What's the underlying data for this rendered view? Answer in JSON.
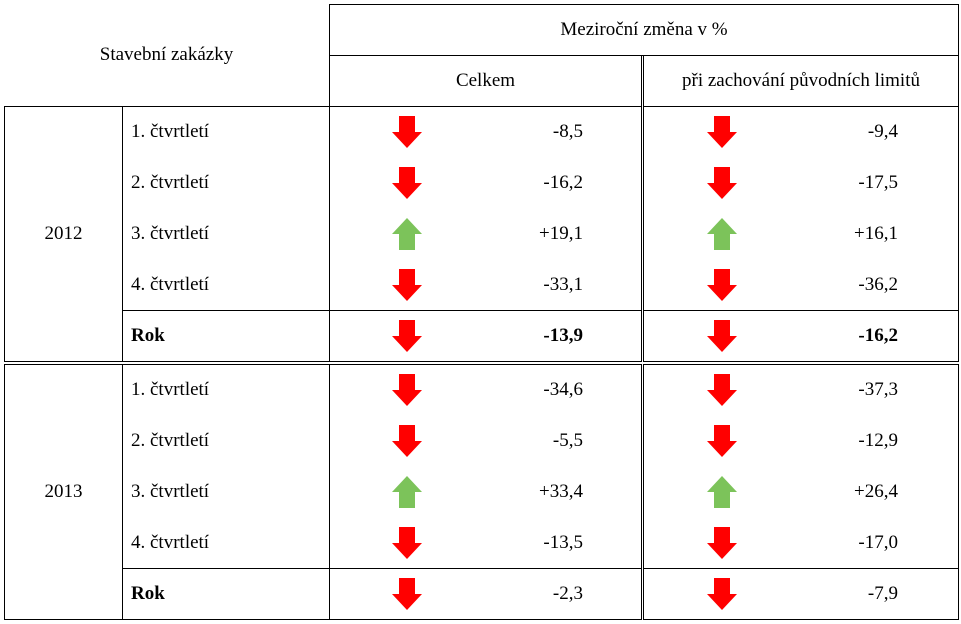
{
  "header": {
    "row_label": "Stavební zakázky",
    "group_label": "Meziroční změna v %",
    "columns": [
      "Celkem",
      "při zachování původních limitů"
    ]
  },
  "colors": {
    "down_arrow": "#ff0000",
    "up_arrow": "#7cc35a",
    "grid": "#000000"
  },
  "years": [
    {
      "year": "2012",
      "rows": [
        {
          "label": "1. čtvrtletí",
          "total": {
            "value": "-8,5",
            "icon": "arrow-down-icon"
          },
          "limit": {
            "value": "-9,4",
            "icon": "arrow-down-icon"
          }
        },
        {
          "label": "2. čtvrtletí",
          "total": {
            "value": "-16,2",
            "icon": "arrow-down-icon"
          },
          "limit": {
            "value": "-17,5",
            "icon": "arrow-down-icon"
          }
        },
        {
          "label": "3. čtvrtletí",
          "total": {
            "value": "+19,1",
            "icon": "arrow-up-icon"
          },
          "limit": {
            "value": "+16,1",
            "icon": "arrow-up-icon"
          }
        },
        {
          "label": "4. čtvrtletí",
          "total": {
            "value": "-33,1",
            "icon": "arrow-down-icon"
          },
          "limit": {
            "value": "-36,2",
            "icon": "arrow-down-icon"
          }
        },
        {
          "label": "Rok",
          "total": {
            "value": "-13,9",
            "icon": "arrow-down-icon"
          },
          "limit": {
            "value": "-16,2",
            "icon": "arrow-down-icon"
          }
        }
      ]
    },
    {
      "year": "2013",
      "rows": [
        {
          "label": "1. čtvrtletí",
          "total": {
            "value": "-34,6",
            "icon": "arrow-down-icon"
          },
          "limit": {
            "value": "-37,3",
            "icon": "arrow-down-icon"
          }
        },
        {
          "label": "2. čtvrtletí",
          "total": {
            "value": "-5,5",
            "icon": "arrow-down-icon"
          },
          "limit": {
            "value": "-12,9",
            "icon": "arrow-down-icon"
          }
        },
        {
          "label": "3. čtvrtletí",
          "total": {
            "value": "+33,4",
            "icon": "arrow-up-icon"
          },
          "limit": {
            "value": "+26,4",
            "icon": "arrow-up-icon"
          }
        },
        {
          "label": "4. čtvrtletí",
          "total": {
            "value": "-13,5",
            "icon": "arrow-down-icon"
          },
          "limit": {
            "value": "-17,0",
            "icon": "arrow-down-icon"
          }
        },
        {
          "label": "Rok",
          "total": {
            "value": "-2,3",
            "icon": "arrow-down-icon"
          },
          "limit": {
            "value": "-7,9",
            "icon": "arrow-down-icon"
          }
        }
      ]
    }
  ]
}
